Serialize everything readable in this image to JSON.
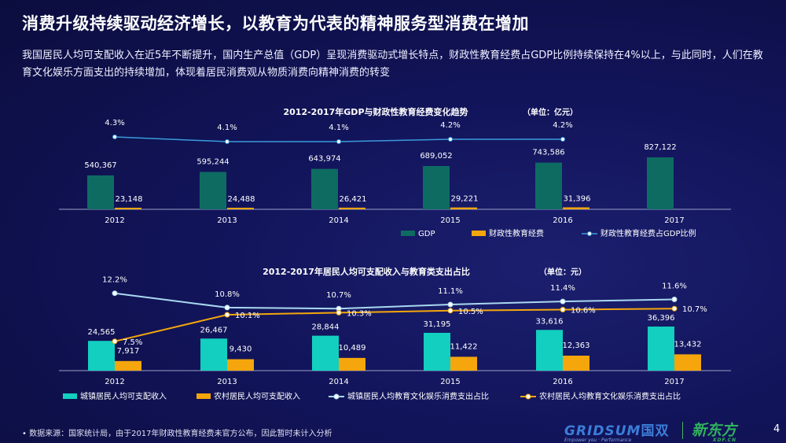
{
  "title": "消费升级持续驱动经济增长，以教育为代表的精神服务型消费在增加",
  "intro": "我国居民人均可支配收入在近5年不断提升，国内生产总值（GDP）呈现消费驱动式增长特点，财政性教育经费占GDP比例持续保持在4%以上，与此同时，人们在教育文化娱乐方面支出的持续增加，体现着居民消费观从物质消费向精神消费的转变",
  "footnote": "•   数据来源：国家统计局，由于2017年财政性教育经费未官方公布，因此暂时未计入分析",
  "logo": {
    "brand": "GRIDSUM",
    "brand_cn": "国双",
    "tagline": "Empower you · Performance",
    "partner": "新东方",
    "partner_sub": "XDF.CN"
  },
  "page_number": "4",
  "colors": {
    "gdp": "#0e6b62",
    "edu_spend": "#f5a60c",
    "ratio_line": "#3a9bdc",
    "urban": "#12cfc0",
    "rural": "#f5a60c",
    "urban_line": "#a9d8f0",
    "rural_line": "#f5a60c"
  },
  "chart_data": [
    {
      "type": "bar",
      "title": "2012-2017年GDP与财政性教育经费变化趋势",
      "unit": "（单位：亿元）",
      "categories": [
        "2012",
        "2013",
        "2014",
        "2015",
        "2016",
        "2017"
      ],
      "series": [
        {
          "name": "GDP",
          "kind": "bar",
          "values": [
            540367,
            595244,
            643974,
            689052,
            743586,
            827122
          ],
          "labels": [
            "540,367",
            "595,244",
            "643,974",
            "689,052",
            "743,586",
            "827,122"
          ]
        },
        {
          "name": "财政性教育经费",
          "kind": "bar",
          "values": [
            23148,
            24488,
            26421,
            29221,
            31396,
            null
          ],
          "labels": [
            "23,148",
            "24,488",
            "26,421",
            "29,221",
            "31,396",
            ""
          ]
        },
        {
          "name": "财政性教育经费占GDP比例",
          "kind": "line",
          "values": [
            4.3,
            4.1,
            4.1,
            4.2,
            4.2,
            null
          ],
          "labels": [
            "4.3%",
            "4.1%",
            "4.1%",
            "4.2%",
            "4.2%",
            ""
          ]
        }
      ],
      "legend": "bottom"
    },
    {
      "type": "bar",
      "title": "2012-2017年居民人均可支配收入与教育类支出占比",
      "unit": "（单位：元）",
      "categories": [
        "2012",
        "2013",
        "2014",
        "2015",
        "2016",
        "2017"
      ],
      "series": [
        {
          "name": "城镇居民人均可支配收入",
          "kind": "bar",
          "values": [
            24565,
            26467,
            28844,
            31195,
            33616,
            36396
          ],
          "labels": [
            "24,565",
            "26,467",
            "28,844",
            "31,195",
            "33,616",
            "36,396"
          ]
        },
        {
          "name": "农村居民人均可支配收入",
          "kind": "bar",
          "values": [
            7917,
            9430,
            10489,
            11422,
            12363,
            13432
          ],
          "labels": [
            "7,917",
            "9,430",
            "10,489",
            "11,422",
            "12,363",
            "13,432"
          ]
        },
        {
          "name": "城镇居民人均教育文化娱乐消费支出占比",
          "kind": "line",
          "values": [
            12.2,
            10.8,
            10.7,
            11.1,
            11.4,
            11.6
          ],
          "labels": [
            "12.2%",
            "10.8%",
            "10.7%",
            "11.1%",
            "11.4%",
            "11.6%"
          ]
        },
        {
          "name": "农村居民人均教育文化娱乐消费支出占比",
          "kind": "line",
          "values": [
            7.5,
            10.1,
            10.3,
            10.5,
            10.6,
            10.7
          ],
          "labels": [
            "7.5%",
            "10.1%",
            "10.3%",
            "10.5%",
            "10.6%",
            "10.7%"
          ]
        }
      ],
      "legend": "bottom"
    }
  ]
}
